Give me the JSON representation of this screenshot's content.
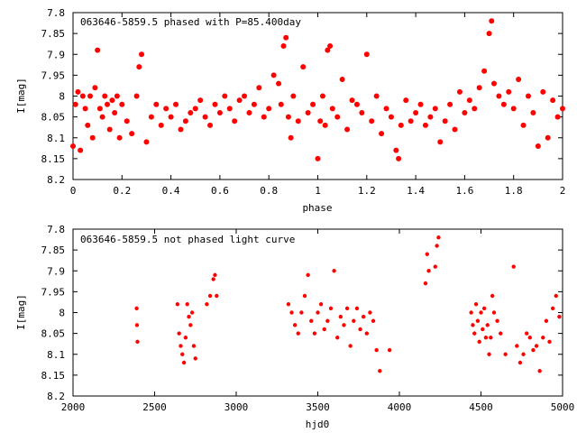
{
  "chart_data": [
    {
      "type": "scatter",
      "title": "063646-5859.5 phased with P=85.400day",
      "xlabel": "phase",
      "ylabel": "I[mag]",
      "xlim": [
        0,
        2
      ],
      "ylim": [
        8.2,
        7.8
      ],
      "y_inverted": true,
      "xticks": [
        "0",
        "0.2",
        "0.4",
        "0.6",
        "0.8",
        "1",
        "1.2",
        "1.4",
        "1.6",
        "1.8",
        "2"
      ],
      "yticks": [
        "7.8",
        "7.85",
        "7.9",
        "7.95",
        "8",
        "8.05",
        "8.1",
        "8.15",
        "8.2"
      ],
      "grid": false,
      "marker_color": "#ff0000",
      "series": [
        {
          "x": [
            0.0,
            0.01,
            0.02,
            0.03,
            0.04,
            0.05,
            0.06,
            0.07,
            0.08,
            0.09,
            0.1,
            0.11,
            0.12,
            0.13,
            0.14,
            0.15,
            0.16,
            0.17,
            0.18,
            0.19,
            0.2,
            0.22,
            0.24,
            0.26,
            0.27,
            0.28,
            0.3,
            0.32,
            0.34,
            0.36,
            0.38,
            0.4,
            0.42,
            0.44,
            0.46,
            0.48,
            0.5,
            0.52,
            0.54,
            0.56,
            0.58,
            0.6,
            0.62,
            0.64,
            0.66,
            0.68,
            0.7,
            0.72,
            0.74,
            0.76,
            0.78,
            0.8,
            0.82,
            0.84,
            0.85,
            0.86,
            0.87,
            0.88,
            0.89,
            0.9,
            0.92,
            0.94,
            0.96,
            0.98,
            1.0,
            1.01,
            1.02,
            1.03,
            1.04,
            1.05,
            1.06,
            1.08,
            1.1,
            1.12,
            1.14,
            1.16,
            1.18,
            1.2,
            1.22,
            1.24,
            1.26,
            1.28,
            1.3,
            1.32,
            1.33,
            1.34,
            1.36,
            1.38,
            1.4,
            1.42,
            1.44,
            1.46,
            1.48,
            1.5,
            1.52,
            1.54,
            1.56,
            1.58,
            1.6,
            1.62,
            1.64,
            1.66,
            1.68,
            1.7,
            1.71,
            1.72,
            1.74,
            1.76,
            1.78,
            1.8,
            1.82,
            1.84,
            1.86,
            1.88,
            1.9,
            1.92,
            1.94,
            1.96,
            1.98,
            2.0
          ],
          "y": [
            8.12,
            8.02,
            7.99,
            8.13,
            8.0,
            8.03,
            8.07,
            8.0,
            8.1,
            7.98,
            7.89,
            8.03,
            8.05,
            8.0,
            8.02,
            8.08,
            8.01,
            8.04,
            8.0,
            8.1,
            8.02,
            8.06,
            8.09,
            8.0,
            7.93,
            7.9,
            8.11,
            8.05,
            8.02,
            8.07,
            8.03,
            8.05,
            8.02,
            8.08,
            8.06,
            8.04,
            8.03,
            8.01,
            8.05,
            8.07,
            8.02,
            8.04,
            8.0,
            8.03,
            8.06,
            8.01,
            8.0,
            8.04,
            8.02,
            7.98,
            8.05,
            8.03,
            7.95,
            7.97,
            8.02,
            7.88,
            7.86,
            8.05,
            8.1,
            8.0,
            8.06,
            7.93,
            8.04,
            8.02,
            8.15,
            8.06,
            8.0,
            8.07,
            7.89,
            7.88,
            8.03,
            8.05,
            7.96,
            8.08,
            8.01,
            8.02,
            8.04,
            7.9,
            8.06,
            8.0,
            8.09,
            8.03,
            8.05,
            8.13,
            8.15,
            8.07,
            8.01,
            8.06,
            8.04,
            8.02,
            8.07,
            8.05,
            8.03,
            8.11,
            8.06,
            8.02,
            8.08,
            7.99,
            8.04,
            8.01,
            8.03,
            7.98,
            7.94,
            7.85,
            7.82,
            7.97,
            8.0,
            8.02,
            7.99,
            8.03,
            7.96,
            8.07,
            8.0,
            8.04,
            8.12,
            7.99,
            8.1,
            8.01,
            8.05,
            8.03
          ]
        }
      ]
    },
    {
      "type": "scatter",
      "title": "063646-5859.5 not phased light curve",
      "xlabel": "hjd0",
      "ylabel": "I[mag]",
      "xlim": [
        2000,
        5000
      ],
      "ylim": [
        8.2,
        7.8
      ],
      "y_inverted": true,
      "xticks": [
        "2000",
        "2500",
        "3000",
        "3500",
        "4000",
        "4500",
        "5000"
      ],
      "yticks": [
        "7.8",
        "7.85",
        "7.9",
        "7.95",
        "8",
        "8.05",
        "8.1",
        "8.15",
        "8.2"
      ],
      "grid": false,
      "marker_color": "#ff0000",
      "series": [
        {
          "x": [
            2390,
            2392,
            2395,
            2640,
            2650,
            2660,
            2670,
            2680,
            2690,
            2700,
            2710,
            2720,
            2730,
            2740,
            2750,
            2820,
            2840,
            2860,
            2870,
            2880,
            3320,
            3340,
            3360,
            3380,
            3400,
            3420,
            3440,
            3460,
            3480,
            3500,
            3520,
            3540,
            3560,
            3580,
            3600,
            3620,
            3640,
            3660,
            3680,
            3700,
            3720,
            3740,
            3760,
            3780,
            3800,
            3820,
            3840,
            3860,
            3880,
            3940,
            4160,
            4170,
            4180,
            4220,
            4230,
            4240,
            4440,
            4450,
            4460,
            4470,
            4480,
            4490,
            4500,
            4510,
            4520,
            4530,
            4540,
            4550,
            4560,
            4570,
            4580,
            4600,
            4620,
            4650,
            4700,
            4720,
            4740,
            4760,
            4780,
            4800,
            4820,
            4840,
            4860,
            4880,
            4900,
            4920,
            4940,
            4960,
            4980
          ],
          "y": [
            7.99,
            8.03,
            8.07,
            7.98,
            8.05,
            8.08,
            8.1,
            8.12,
            8.06,
            7.98,
            8.01,
            8.03,
            8.0,
            8.08,
            8.11,
            7.98,
            7.96,
            7.92,
            7.91,
            7.96,
            7.98,
            8.0,
            8.03,
            8.05,
            8.0,
            7.96,
            7.91,
            8.02,
            8.05,
            8.0,
            7.98,
            8.04,
            8.02,
            7.99,
            7.9,
            8.06,
            8.01,
            8.03,
            7.99,
            8.08,
            8.02,
            7.99,
            8.04,
            8.01,
            8.05,
            8.0,
            8.02,
            8.09,
            8.14,
            8.09,
            7.93,
            7.86,
            7.9,
            7.89,
            7.84,
            7.82,
            8.0,
            8.03,
            8.05,
            7.98,
            8.02,
            8.07,
            8.0,
            8.04,
            7.99,
            8.06,
            8.03,
            8.1,
            8.06,
            7.96,
            8.0,
            8.02,
            8.05,
            8.1,
            7.89,
            8.08,
            8.12,
            8.1,
            8.05,
            8.06,
            8.09,
            8.08,
            8.14,
            8.06,
            8.02,
            8.07,
            7.99,
            7.96,
            8.01
          ]
        }
      ]
    }
  ]
}
